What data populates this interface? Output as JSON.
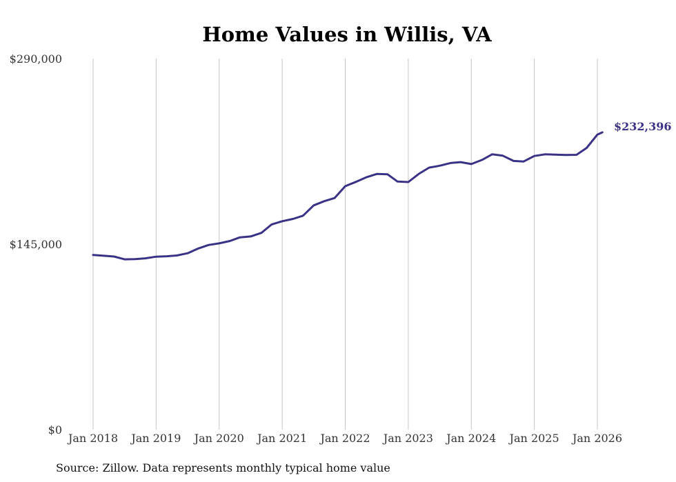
{
  "chart_data": {
    "type": "line",
    "title": "Home Values in Willis, VA",
    "source": "Source: Zillow. Data represents monthly typical home value",
    "xlabel": "",
    "ylabel": "",
    "ylim": [
      0,
      290000
    ],
    "y_ticks": [
      {
        "value": 290000,
        "label": "$290,000"
      },
      {
        "value": 145000,
        "label": "$145,000"
      },
      {
        "value": 0,
        "label": "$0"
      }
    ],
    "x_ticks": [
      {
        "value": 2018,
        "label": "Jan 2018"
      },
      {
        "value": 2019,
        "label": "Jan 2019"
      },
      {
        "value": 2020,
        "label": "Jan 2020"
      },
      {
        "value": 2021,
        "label": "Jan 2021"
      },
      {
        "value": 2022,
        "label": "Jan 2022"
      },
      {
        "value": 2023,
        "label": "Jan 2023"
      },
      {
        "value": 2024,
        "label": "Jan 2024"
      },
      {
        "value": 2025,
        "label": "Jan 2025"
      },
      {
        "value": 2026,
        "label": "Jan 2026"
      }
    ],
    "xlim": [
      2018,
      2026.08
    ],
    "grid": true,
    "line_color": "#3a3286",
    "end_label": "$232,396",
    "series": [
      {
        "name": "Typical home value",
        "points": [
          [
            2018.0,
            136500
          ],
          [
            2018.17,
            135900
          ],
          [
            2018.33,
            135300
          ],
          [
            2018.5,
            133100
          ],
          [
            2018.67,
            133300
          ],
          [
            2018.83,
            133900
          ],
          [
            2019.0,
            135200
          ],
          [
            2019.17,
            135500
          ],
          [
            2019.33,
            136100
          ],
          [
            2019.5,
            137900
          ],
          [
            2019.67,
            141600
          ],
          [
            2019.83,
            144300
          ],
          [
            2020.0,
            145600
          ],
          [
            2020.17,
            147400
          ],
          [
            2020.33,
            150300
          ],
          [
            2020.5,
            151000
          ],
          [
            2020.67,
            153800
          ],
          [
            2020.83,
            160300
          ],
          [
            2021.0,
            162900
          ],
          [
            2021.17,
            164700
          ],
          [
            2021.33,
            167200
          ],
          [
            2021.5,
            175300
          ],
          [
            2021.67,
            178600
          ],
          [
            2021.83,
            181000
          ],
          [
            2022.0,
            190300
          ],
          [
            2022.17,
            193700
          ],
          [
            2022.33,
            197200
          ],
          [
            2022.5,
            199800
          ],
          [
            2022.67,
            199600
          ],
          [
            2022.83,
            193900
          ],
          [
            2023.0,
            193500
          ],
          [
            2023.17,
            200000
          ],
          [
            2023.33,
            204800
          ],
          [
            2023.5,
            206300
          ],
          [
            2023.67,
            208400
          ],
          [
            2023.83,
            209100
          ],
          [
            2024.0,
            207600
          ],
          [
            2024.17,
            210800
          ],
          [
            2024.33,
            215200
          ],
          [
            2024.5,
            214100
          ],
          [
            2024.67,
            210000
          ],
          [
            2024.83,
            209600
          ],
          [
            2025.0,
            213900
          ],
          [
            2025.17,
            215200
          ],
          [
            2025.33,
            214900
          ],
          [
            2025.5,
            214700
          ],
          [
            2025.67,
            214800
          ],
          [
            2025.83,
            220200
          ],
          [
            2026.0,
            230600
          ],
          [
            2026.08,
            232396
          ]
        ]
      }
    ]
  }
}
